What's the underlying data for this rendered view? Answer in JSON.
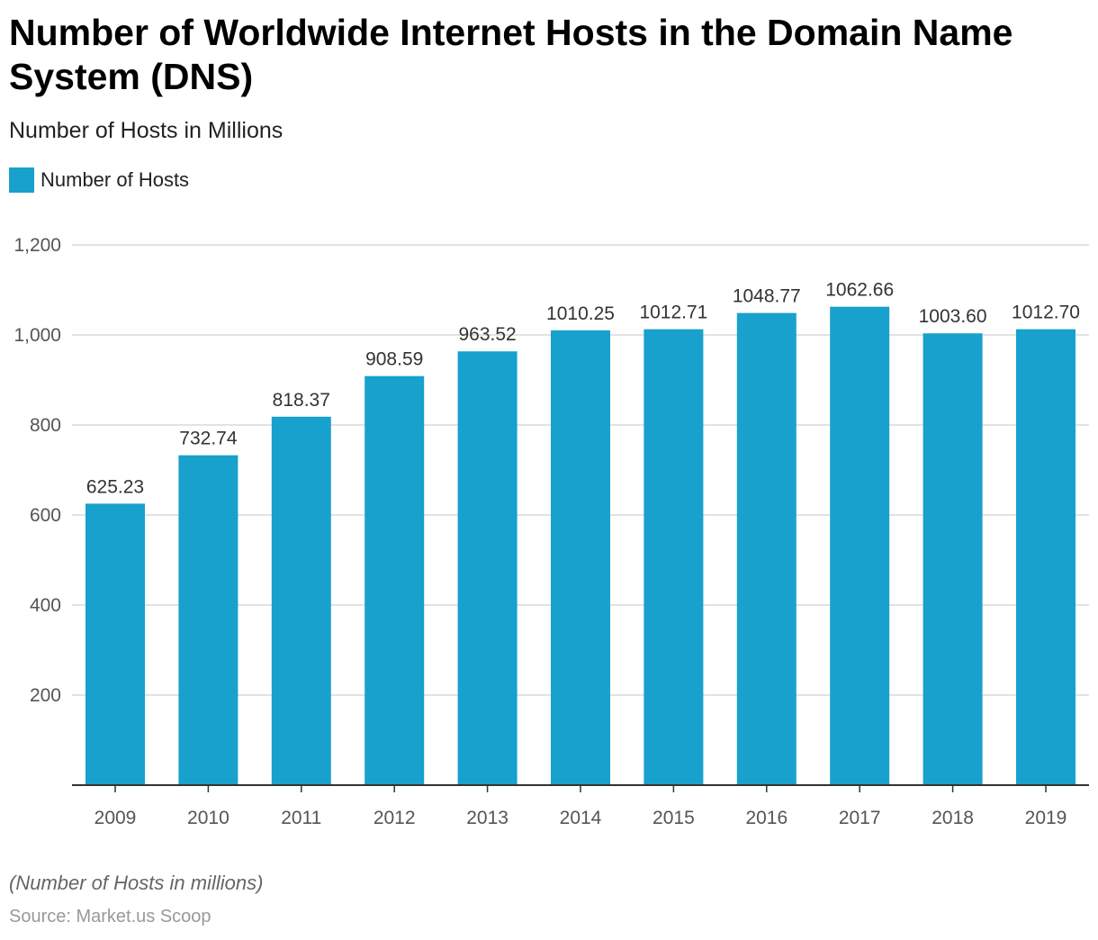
{
  "title": "Number of Worldwide Internet Hosts in the Domain Name System (DNS)",
  "subtitle": "Number of Hosts in Millions",
  "note": "(Number of Hosts in millions)",
  "source": "Source: Market.us Scoop",
  "colors": {
    "bar": "#18a1cd",
    "grid": "#d9d9d9",
    "axis": "#333333"
  },
  "chart_data": {
    "type": "bar",
    "title": "Number of Worldwide Internet Hosts in the Domain Name System (DNS)",
    "subtitle": "Number of Hosts in Millions",
    "categories": [
      "2009",
      "2010",
      "2011",
      "2012",
      "2013",
      "2014",
      "2015",
      "2016",
      "2017",
      "2018",
      "2019"
    ],
    "series": [
      {
        "name": "Number of Hosts",
        "values": [
          625.23,
          732.74,
          818.37,
          908.59,
          963.52,
          1010.25,
          1012.71,
          1048.77,
          1062.66,
          1003.6,
          1012.7
        ]
      }
    ],
    "data_labels": [
      "625.23",
      "732.74",
      "818.37",
      "908.59",
      "963.52",
      "1010.25",
      "1012.71",
      "1048.77",
      "1062.66",
      "1003.60",
      "1012.70"
    ],
    "ylim": [
      0,
      1200
    ],
    "yticks": [
      200,
      400,
      600,
      800,
      1000,
      1200
    ],
    "ytick_labels": [
      "200",
      "400",
      "600",
      "800",
      "1,000",
      "1,200"
    ],
    "grid": true,
    "legend": "top-left"
  }
}
